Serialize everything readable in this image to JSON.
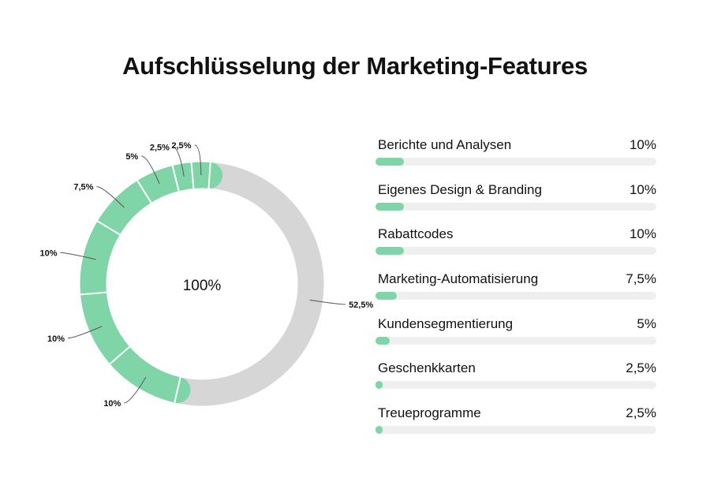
{
  "chart_data": {
    "type": "donut_with_bars",
    "title": "Aufschlüsselung der Marketing-Features",
    "center_label": "100%",
    "colors": {
      "accent": "#7fd5a8",
      "remainder": "#d6d6d6",
      "track": "#efefef"
    },
    "donut_slices": [
      {
        "value": 52.5,
        "label": "52,5%",
        "color": "#d6d6d6"
      },
      {
        "value": 10,
        "label": "10%",
        "color": "#7fd5a8"
      },
      {
        "value": 10,
        "label": "10%",
        "color": "#7fd5a8"
      },
      {
        "value": 10,
        "label": "10%",
        "color": "#7fd5a8"
      },
      {
        "value": 7.5,
        "label": "7,5%",
        "color": "#7fd5a8"
      },
      {
        "value": 5,
        "label": "5%",
        "color": "#7fd5a8"
      },
      {
        "value": 2.5,
        "label": "2,5%",
        "color": "#7fd5a8"
      },
      {
        "value": 2.5,
        "label": "2,5%",
        "color": "#7fd5a8"
      }
    ],
    "categories": [
      "Berichte und Analysen",
      "Eigenes Design & Branding",
      "Rabattcodes",
      "Marketing-Automatisierung",
      "Kundensegmentierung",
      "Geschenkkarten",
      "Treueprogramme"
    ],
    "values": [
      10,
      10,
      10,
      7.5,
      5,
      2.5,
      2.5
    ],
    "value_labels": [
      "10%",
      "10%",
      "10%",
      "7,5%",
      "5%",
      "2,5%",
      "2,5%"
    ]
  }
}
